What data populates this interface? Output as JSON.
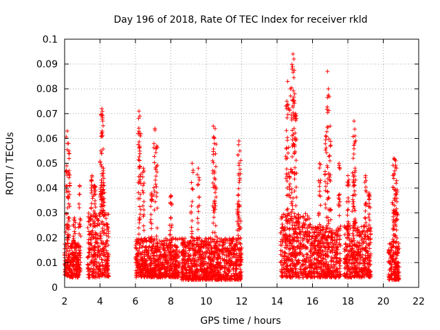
{
  "chart_data": {
    "type": "scatter",
    "title": "Day 196 of 2018, Rate Of TEC Index for receiver rkld",
    "xlabel": "GPS time / hours",
    "ylabel": "ROTI / TECUs",
    "xlim": [
      2,
      22
    ],
    "ylim": [
      0,
      0.1
    ],
    "x_ticks": [
      "2",
      "4",
      "6",
      "8",
      "10",
      "12",
      "14",
      "16",
      "18",
      "20",
      "22"
    ],
    "y_ticks": [
      "0",
      "0.01",
      "0.02",
      "0.03",
      "0.04",
      "0.05",
      "0.06",
      "0.07",
      "0.08",
      "0.09",
      "0.1"
    ],
    "grid": true,
    "marker": "+",
    "color": "#ff0000",
    "series": [
      {
        "name": "ROTI",
        "clusters": [
          {
            "x_range": [
              2.0,
              2.9
            ],
            "base": [
              0.004,
              0.018
            ],
            "peaks": [
              [
                2.15,
                0.063
              ],
              [
                2.22,
                0.058
              ],
              [
                2.12,
                0.049
              ],
              [
                2.25,
                0.047
              ],
              [
                2.55,
                0.028
              ],
              [
                2.85,
                0.041
              ]
            ]
          },
          {
            "x_range": [
              3.3,
              4.5
            ],
            "base": [
              0.004,
              0.03
            ],
            "peaks": [
              [
                4.1,
                0.072
              ],
              [
                4.15,
                0.067
              ],
              [
                4.12,
                0.063
              ],
              [
                4.05,
                0.055
              ],
              [
                4.2,
                0.046
              ],
              [
                3.55,
                0.045
              ],
              [
                3.7,
                0.041
              ]
            ]
          },
          {
            "x_range": [
              6.0,
              8.5
            ],
            "base": [
              0.004,
              0.02
            ],
            "peaks": [
              [
                6.2,
                0.071
              ],
              [
                6.25,
                0.069
              ],
              [
                6.22,
                0.062
              ],
              [
                7.1,
                0.064
              ],
              [
                7.2,
                0.057
              ],
              [
                6.45,
                0.048
              ],
              [
                8.0,
                0.037
              ],
              [
                6.9,
                0.038
              ]
            ]
          },
          {
            "x_range": [
              8.6,
              12.0
            ],
            "base": [
              0.003,
              0.02
            ],
            "peaks": [
              [
                9.2,
                0.05
              ],
              [
                9.55,
                0.048
              ],
              [
                10.4,
                0.065
              ],
              [
                10.5,
                0.064
              ],
              [
                10.45,
                0.06
              ],
              [
                11.85,
                0.059
              ],
              [
                11.9,
                0.055
              ],
              [
                11.8,
                0.037
              ]
            ]
          },
          {
            "x_range": [
              14.2,
              15.9
            ],
            "base": [
              0.004,
              0.03
            ],
            "peaks": [
              [
                14.9,
                0.094
              ],
              [
                14.95,
                0.092
              ],
              [
                14.85,
                0.088
              ],
              [
                14.6,
                0.083
              ],
              [
                14.75,
                0.08
              ],
              [
                15.0,
                0.078
              ],
              [
                14.55,
                0.075
              ],
              [
                15.05,
                0.07
              ]
            ]
          },
          {
            "x_range": [
              15.9,
              17.6
            ],
            "base": [
              0.004,
              0.025
            ],
            "peaks": [
              [
                16.85,
                0.087
              ],
              [
                16.9,
                0.08
              ],
              [
                17.0,
                0.065
              ],
              [
                16.75,
                0.061
              ],
              [
                16.4,
                0.05
              ],
              [
                17.5,
                0.05
              ]
            ]
          },
          {
            "x_range": [
              17.8,
              19.3
            ],
            "base": [
              0.004,
              0.025
            ],
            "peaks": [
              [
                18.35,
                0.067
              ],
              [
                18.4,
                0.061
              ],
              [
                18.3,
                0.052
              ],
              [
                18.0,
                0.045
              ],
              [
                19.0,
                0.045
              ],
              [
                19.2,
                0.038
              ]
            ]
          },
          {
            "x_range": [
              20.3,
              20.9
            ],
            "base": [
              0.003,
              0.018
            ],
            "peaks": [
              [
                20.6,
                0.052
              ],
              [
                20.7,
                0.051
              ],
              [
                20.65,
                0.047
              ],
              [
                20.55,
                0.045
              ],
              [
                20.75,
                0.043
              ]
            ]
          }
        ]
      }
    ]
  }
}
